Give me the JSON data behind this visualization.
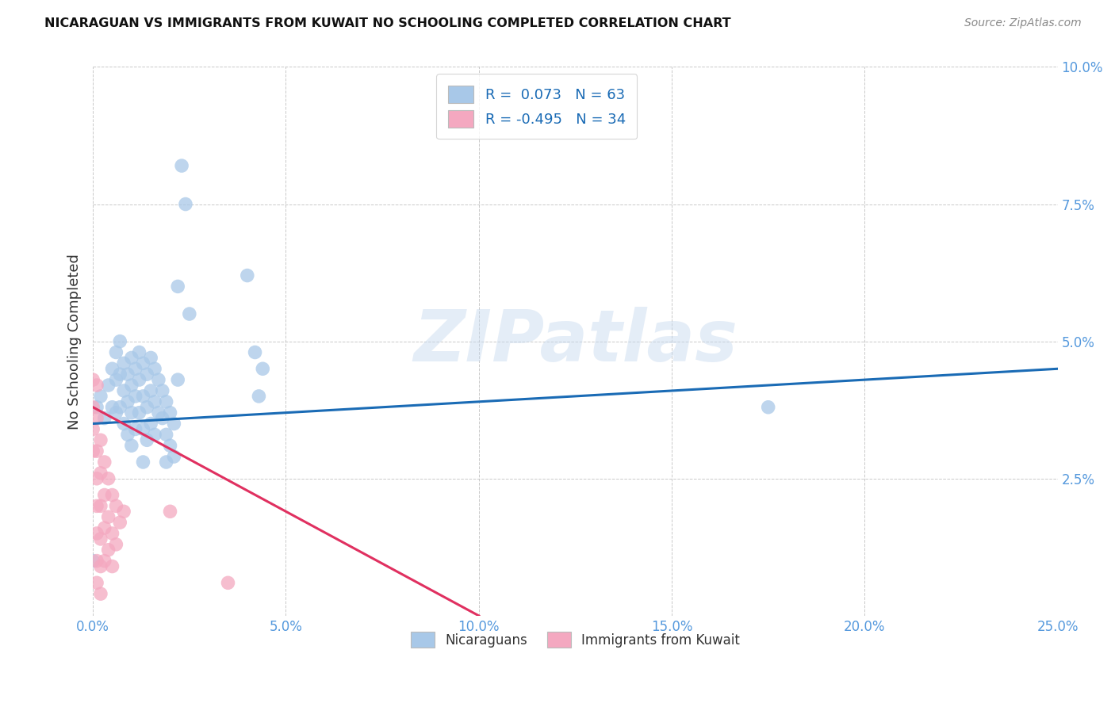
{
  "title": "NICARAGUAN VS IMMIGRANTS FROM KUWAIT NO SCHOOLING COMPLETED CORRELATION CHART",
  "source": "Source: ZipAtlas.com",
  "ylabel": "No Schooling Completed",
  "xlim": [
    0,
    0.25
  ],
  "ylim": [
    0,
    0.1
  ],
  "xticks": [
    0.0,
    0.05,
    0.1,
    0.15,
    0.2,
    0.25
  ],
  "yticks": [
    0.0,
    0.025,
    0.05,
    0.075,
    0.1
  ],
  "xticklabels": [
    "0.0%",
    "5.0%",
    "10.0%",
    "15.0%",
    "20.0%",
    "25.0%"
  ],
  "yticklabels": [
    "",
    "2.5%",
    "5.0%",
    "7.5%",
    "10.0%"
  ],
  "blue_color": "#a8c8e8",
  "pink_color": "#f4a8c0",
  "blue_line_color": "#1a6bb5",
  "pink_line_color": "#e03060",
  "watermark_text": "ZIPatlas",
  "blue_scatter": [
    [
      0.001,
      0.038
    ],
    [
      0.002,
      0.04
    ],
    [
      0.003,
      0.036
    ],
    [
      0.004,
      0.042
    ],
    [
      0.005,
      0.045
    ],
    [
      0.005,
      0.038
    ],
    [
      0.006,
      0.048
    ],
    [
      0.006,
      0.043
    ],
    [
      0.006,
      0.037
    ],
    [
      0.007,
      0.05
    ],
    [
      0.007,
      0.044
    ],
    [
      0.007,
      0.038
    ],
    [
      0.008,
      0.046
    ],
    [
      0.008,
      0.041
    ],
    [
      0.008,
      0.035
    ],
    [
      0.009,
      0.044
    ],
    [
      0.009,
      0.039
    ],
    [
      0.009,
      0.033
    ],
    [
      0.01,
      0.047
    ],
    [
      0.01,
      0.042
    ],
    [
      0.01,
      0.037
    ],
    [
      0.01,
      0.031
    ],
    [
      0.011,
      0.045
    ],
    [
      0.011,
      0.04
    ],
    [
      0.011,
      0.034
    ],
    [
      0.012,
      0.048
    ],
    [
      0.012,
      0.043
    ],
    [
      0.012,
      0.037
    ],
    [
      0.013,
      0.046
    ],
    [
      0.013,
      0.04
    ],
    [
      0.013,
      0.034
    ],
    [
      0.013,
      0.028
    ],
    [
      0.014,
      0.044
    ],
    [
      0.014,
      0.038
    ],
    [
      0.014,
      0.032
    ],
    [
      0.015,
      0.047
    ],
    [
      0.015,
      0.041
    ],
    [
      0.015,
      0.035
    ],
    [
      0.016,
      0.045
    ],
    [
      0.016,
      0.039
    ],
    [
      0.016,
      0.033
    ],
    [
      0.017,
      0.043
    ],
    [
      0.017,
      0.037
    ],
    [
      0.018,
      0.041
    ],
    [
      0.018,
      0.036
    ],
    [
      0.019,
      0.039
    ],
    [
      0.019,
      0.033
    ],
    [
      0.019,
      0.028
    ],
    [
      0.02,
      0.037
    ],
    [
      0.02,
      0.031
    ],
    [
      0.021,
      0.035
    ],
    [
      0.021,
      0.029
    ],
    [
      0.022,
      0.06
    ],
    [
      0.022,
      0.043
    ],
    [
      0.023,
      0.082
    ],
    [
      0.024,
      0.075
    ],
    [
      0.025,
      0.055
    ],
    [
      0.04,
      0.062
    ],
    [
      0.042,
      0.048
    ],
    [
      0.043,
      0.04
    ],
    [
      0.044,
      0.045
    ],
    [
      0.175,
      0.038
    ],
    [
      0.0,
      0.01
    ]
  ],
  "pink_scatter": [
    [
      0.0,
      0.043
    ],
    [
      0.0,
      0.038
    ],
    [
      0.0,
      0.034
    ],
    [
      0.0,
      0.03
    ],
    [
      0.001,
      0.042
    ],
    [
      0.001,
      0.036
    ],
    [
      0.001,
      0.03
    ],
    [
      0.001,
      0.025
    ],
    [
      0.001,
      0.02
    ],
    [
      0.001,
      0.015
    ],
    [
      0.001,
      0.01
    ],
    [
      0.001,
      0.006
    ],
    [
      0.002,
      0.032
    ],
    [
      0.002,
      0.026
    ],
    [
      0.002,
      0.02
    ],
    [
      0.002,
      0.014
    ],
    [
      0.002,
      0.009
    ],
    [
      0.002,
      0.004
    ],
    [
      0.003,
      0.028
    ],
    [
      0.003,
      0.022
    ],
    [
      0.003,
      0.016
    ],
    [
      0.003,
      0.01
    ],
    [
      0.004,
      0.025
    ],
    [
      0.004,
      0.018
    ],
    [
      0.004,
      0.012
    ],
    [
      0.005,
      0.022
    ],
    [
      0.005,
      0.015
    ],
    [
      0.005,
      0.009
    ],
    [
      0.006,
      0.02
    ],
    [
      0.006,
      0.013
    ],
    [
      0.007,
      0.017
    ],
    [
      0.008,
      0.019
    ],
    [
      0.02,
      0.019
    ],
    [
      0.035,
      0.006
    ]
  ],
  "blue_line_x0": 0.0,
  "blue_line_y0": 0.035,
  "blue_line_x1": 0.25,
  "blue_line_y1": 0.045,
  "pink_line_x0": 0.0,
  "pink_line_y0": 0.038,
  "pink_line_x1": 0.1,
  "pink_line_y1": 0.0
}
